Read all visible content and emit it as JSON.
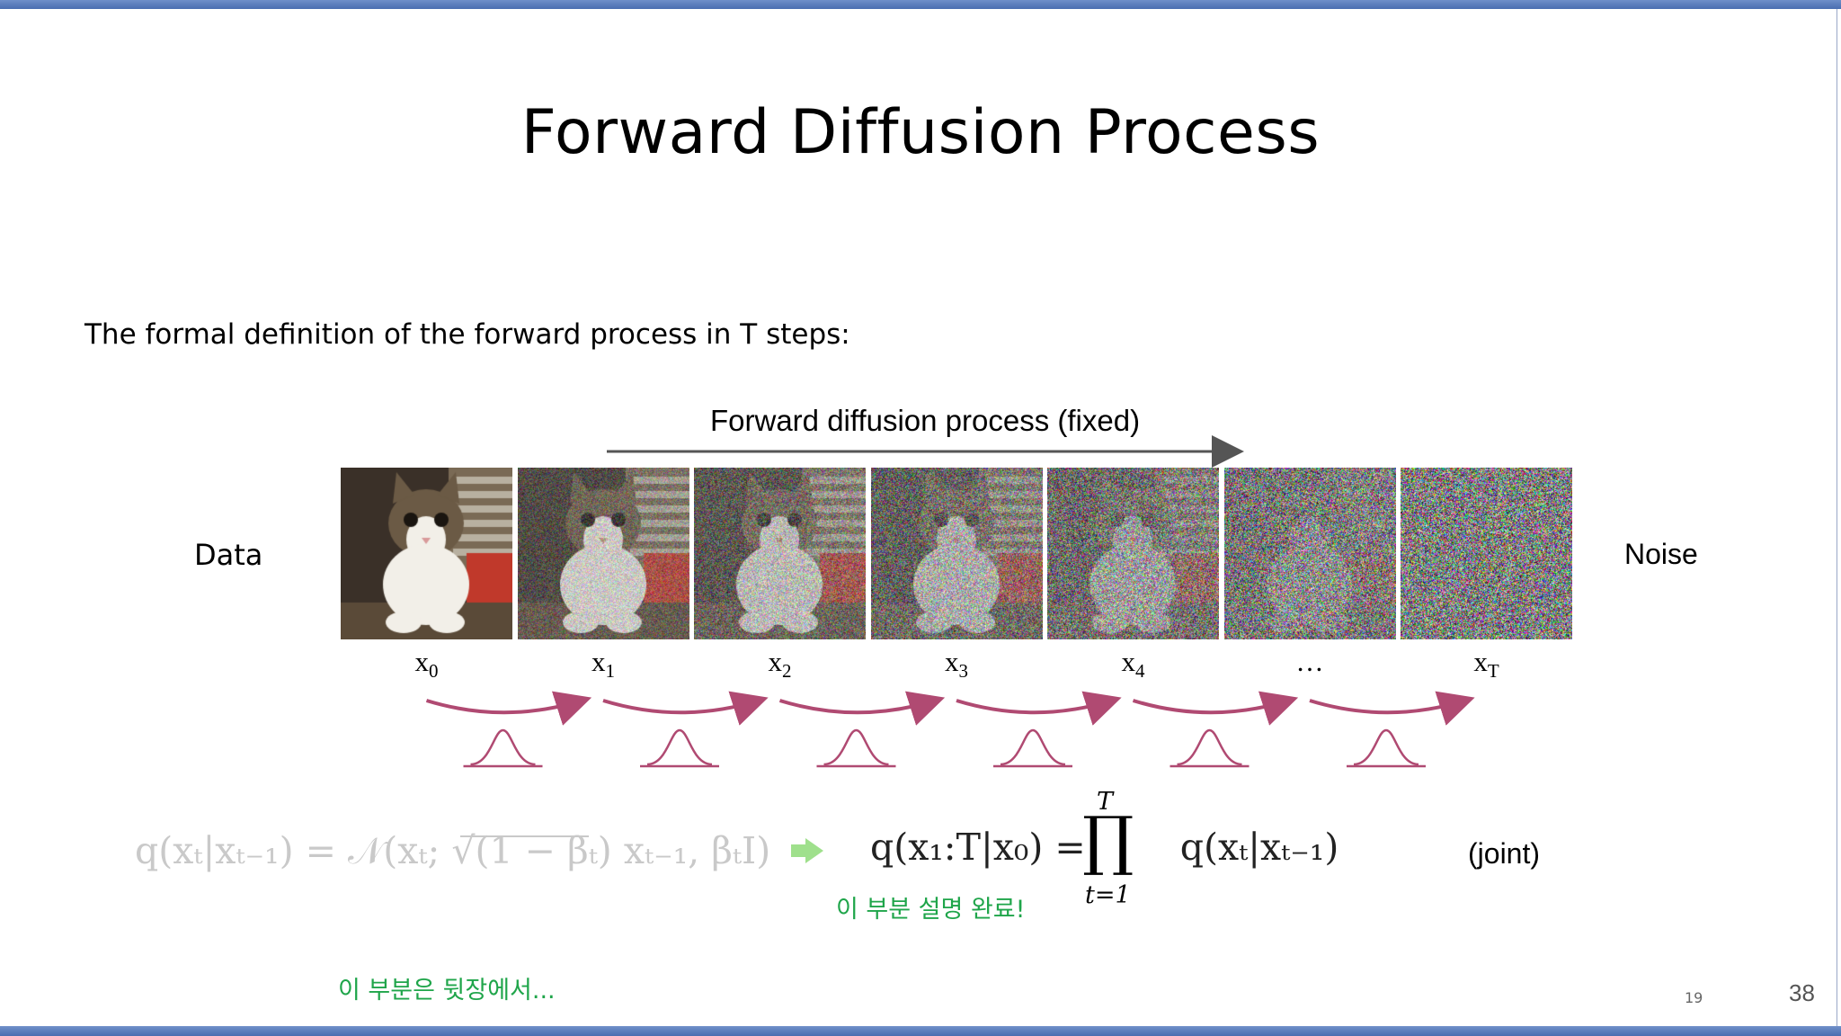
{
  "title": "Forward Diffusion Process",
  "intro": "The formal definition of the forward process in T steps:",
  "process_label": "Forward diffusion process (fixed)",
  "left_label": "Data",
  "right_label": "Noise",
  "frames": [
    {
      "label": "x",
      "sub": "0",
      "noise_level": 0.0
    },
    {
      "label": "x",
      "sub": "1",
      "noise_level": 0.35
    },
    {
      "label": "x",
      "sub": "2",
      "noise_level": 0.5
    },
    {
      "label": "x",
      "sub": "3",
      "noise_level": 0.62
    },
    {
      "label": "x",
      "sub": "4",
      "noise_level": 0.75
    },
    {
      "label": "…",
      "sub": "",
      "noise_level": 0.88
    },
    {
      "label": "x",
      "sub": "T",
      "noise_level": 1.0
    }
  ],
  "equation_conditional": "q(xₜ|xₜ₋₁) = 𝒩(xₜ; √(1 − βₜ) xₜ₋₁, βₜI)",
  "equation_joint_lhs": "q(x₁:T|x₀) = ",
  "equation_joint_rhs": "q(xₜ|xₜ₋₁)",
  "product_upper": "T",
  "product_lower": "t=1",
  "joint_tag": "(joint)",
  "note_done": "이 부분 설명 완료!",
  "note_next": "이 부분은 뒷장에서...",
  "page_small": "19",
  "page_number": "38",
  "colors": {
    "accent_bar": "#5577bb",
    "transition_arrow": "#b04a72",
    "note_green": "#1fa54a",
    "green_arrow": "#9fe08c",
    "faded_equation": "#c9c9c9"
  }
}
